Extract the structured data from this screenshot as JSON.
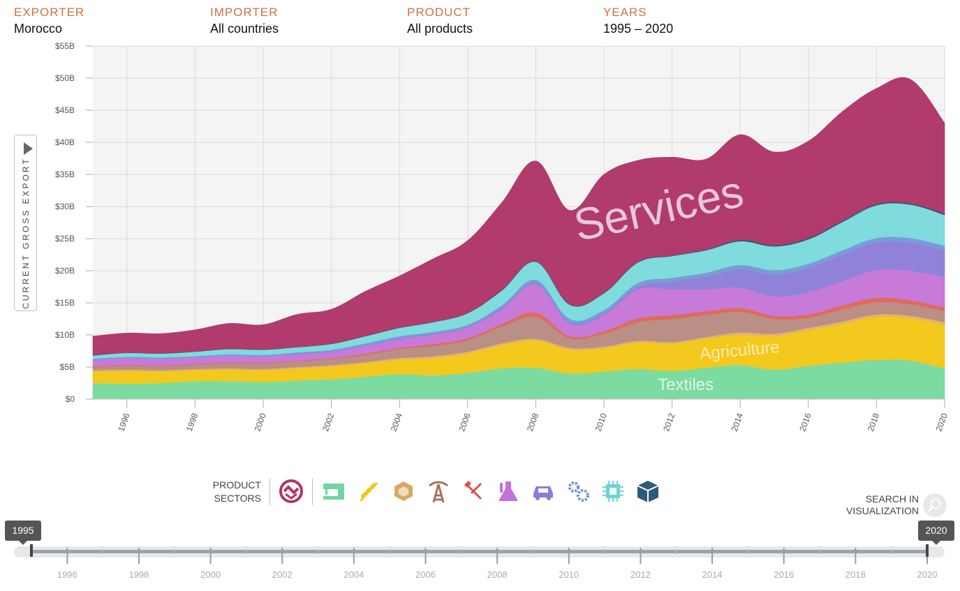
{
  "filters": {
    "exporter": {
      "label": "EXPORTER",
      "value": "Morocco"
    },
    "importer": {
      "label": "IMPORTER",
      "value": "All countries"
    },
    "product": {
      "label": "PRODUCT",
      "value": "All products"
    },
    "years": {
      "label": "YEARS",
      "value": "1995 – 2020"
    }
  },
  "y_axis_title": "CURRENT GROSS EXPORT",
  "sectors": {
    "label_line1": "PRODUCT",
    "label_line2": "SECTORS",
    "icons": [
      {
        "name": "services-icon",
        "color": "#b0356a"
      },
      {
        "name": "textiles-icon",
        "color": "#6fd69e"
      },
      {
        "name": "agriculture-icon",
        "color": "#f2c818"
      },
      {
        "name": "stone-icon",
        "color": "#d9a861"
      },
      {
        "name": "minerals-icon",
        "color": "#a4725c"
      },
      {
        "name": "metals-icon",
        "color": "#d9504f"
      },
      {
        "name": "chemicals-icon",
        "color": "#c271d8"
      },
      {
        "name": "vehicles-icon",
        "color": "#8d7cd9"
      },
      {
        "name": "machinery-icon",
        "color": "#6f8ed9"
      },
      {
        "name": "electronics-icon",
        "color": "#6ad4d9"
      },
      {
        "name": "other-icon",
        "color": "#2f5a78"
      }
    ]
  },
  "search": {
    "line1": "SEARCH IN",
    "line2": "VISUALIZATION"
  },
  "timeline": {
    "start": "1995",
    "end": "2020",
    "ticks": [
      "1996",
      "1998",
      "2000",
      "2002",
      "2004",
      "2006",
      "2008",
      "2010",
      "2012",
      "2014",
      "2016",
      "2018",
      "2020"
    ]
  },
  "chart_data": {
    "type": "area",
    "stacked": true,
    "x": [
      1995,
      1996,
      1997,
      1998,
      1999,
      2000,
      2001,
      2002,
      2003,
      2004,
      2005,
      2006,
      2007,
      2008,
      2009,
      2010,
      2011,
      2012,
      2013,
      2014,
      2015,
      2016,
      2017,
      2018,
      2019,
      2020
    ],
    "x_ticks": [
      "1996",
      "1998",
      "2000",
      "2002",
      "2004",
      "2006",
      "2008",
      "2010",
      "2012",
      "2014",
      "2016",
      "2018",
      "2020"
    ],
    "y_ticks": [
      "$0",
      "$5B",
      "$10B",
      "$15B",
      "$20B",
      "$25B",
      "$30B",
      "$35B",
      "$40B",
      "$45B",
      "$50B",
      "$55B"
    ],
    "ylim": [
      0,
      55
    ],
    "y_unit": "billion USD",
    "grid": true,
    "series": [
      {
        "name": "Textiles",
        "color": "#7cdba0",
        "values": [
          2.5,
          2.4,
          2.5,
          2.8,
          2.8,
          2.7,
          2.9,
          3.1,
          3.5,
          3.9,
          3.7,
          4.1,
          4.8,
          4.9,
          4.0,
          4.3,
          4.7,
          4.4,
          4.9,
          5.3,
          4.6,
          5.2,
          5.7,
          6.1,
          6.0,
          4.8
        ]
      },
      {
        "name": "Agriculture",
        "color": "#f3c91e",
        "values": [
          1.8,
          2.0,
          1.8,
          1.7,
          1.8,
          1.8,
          1.9,
          2.0,
          2.1,
          2.2,
          2.7,
          3.0,
          3.6,
          4.2,
          3.7,
          3.6,
          4.1,
          4.2,
          4.5,
          4.7,
          5.2,
          5.5,
          6.0,
          6.7,
          6.6,
          6.8
        ]
      },
      {
        "name": "",
        "color": "#e3b467",
        "values": [
          0.2,
          0.2,
          0.2,
          0.2,
          0.2,
          0.2,
          0.2,
          0.2,
          0.2,
          0.3,
          0.3,
          0.3,
          0.3,
          0.3,
          0.3,
          0.3,
          0.3,
          0.3,
          0.3,
          0.4,
          0.4,
          0.4,
          0.4,
          0.4,
          0.4,
          0.4
        ]
      },
      {
        "name": "",
        "color": "#b98f86",
        "values": [
          0.5,
          0.6,
          0.6,
          0.7,
          0.8,
          0.9,
          0.9,
          1.0,
          1.1,
          1.4,
          1.6,
          1.8,
          2.6,
          3.4,
          1.5,
          2.0,
          2.9,
          3.6,
          3.4,
          3.2,
          2.3,
          1.6,
          1.9,
          1.9,
          1.8,
          1.7
        ]
      },
      {
        "name": "",
        "color": "#e06b5c",
        "values": [
          0.1,
          0.1,
          0.1,
          0.1,
          0.1,
          0.1,
          0.1,
          0.1,
          0.2,
          0.2,
          0.3,
          0.3,
          0.4,
          0.7,
          0.3,
          0.4,
          0.6,
          0.6,
          0.6,
          0.6,
          0.5,
          0.5,
          0.6,
          0.7,
          0.6,
          0.6
        ]
      },
      {
        "name": "",
        "color": "#c77ad8",
        "values": [
          1.0,
          1.1,
          1.1,
          1.0,
          1.1,
          1.0,
          1.0,
          1.0,
          1.2,
          1.4,
          1.5,
          1.7,
          2.3,
          4.4,
          2.0,
          2.5,
          4.5,
          4.0,
          3.4,
          3.2,
          3.0,
          3.5,
          3.8,
          4.3,
          4.6,
          4.7
        ]
      },
      {
        "name": "",
        "color": "#9082d9",
        "values": [
          0.0,
          0.0,
          0.0,
          0.0,
          0.0,
          0.0,
          0.1,
          0.1,
          0.1,
          0.1,
          0.1,
          0.1,
          0.2,
          0.2,
          0.2,
          0.3,
          0.4,
          1.2,
          2.0,
          2.8,
          3.4,
          3.7,
          4.1,
          4.3,
          4.4,
          4.2
        ]
      },
      {
        "name": "",
        "color": "#7a9bd9",
        "values": [
          0.2,
          0.2,
          0.2,
          0.2,
          0.2,
          0.2,
          0.2,
          0.2,
          0.3,
          0.3,
          0.3,
          0.3,
          0.4,
          0.5,
          0.5,
          0.5,
          0.6,
          0.6,
          0.6,
          0.7,
          0.7,
          0.7,
          0.7,
          0.7,
          0.7,
          0.7
        ]
      },
      {
        "name": "",
        "color": "#7fdbdc",
        "values": [
          0.5,
          0.6,
          0.6,
          0.7,
          0.8,
          0.8,
          0.8,
          0.9,
          1.1,
          1.3,
          1.5,
          1.8,
          2.3,
          2.8,
          2.2,
          2.6,
          3.2,
          3.4,
          3.5,
          3.7,
          3.7,
          3.8,
          4.4,
          5.1,
          5.2,
          4.8
        ]
      },
      {
        "name": "",
        "color": "#2f5a78",
        "values": [
          0.05,
          0.05,
          0.05,
          0.05,
          0.05,
          0.05,
          0.05,
          0.05,
          0.05,
          0.05,
          0.05,
          0.05,
          0.1,
          0.1,
          0.1,
          0.1,
          0.1,
          0.1,
          0.1,
          0.2,
          0.2,
          0.2,
          0.2,
          0.2,
          0.2,
          0.2
        ]
      },
      {
        "name": "Services",
        "color": "#b03b6c",
        "values": [
          2.95,
          3.05,
          3.05,
          3.35,
          3.95,
          3.85,
          5.05,
          5.35,
          6.95,
          8.05,
          9.85,
          11.25,
          13.6,
          15.6,
          14.6,
          18.4,
          15.8,
          15.3,
          14.1,
          16.4,
          14.5,
          15.1,
          17.0,
          18.0,
          19.3,
          14.1
        ]
      }
    ],
    "annotations": [
      {
        "text": "Services",
        "series": "Services"
      },
      {
        "text": "Agriculture",
        "series": "Agriculture"
      },
      {
        "text": "Textiles",
        "series": "Textiles"
      }
    ]
  }
}
